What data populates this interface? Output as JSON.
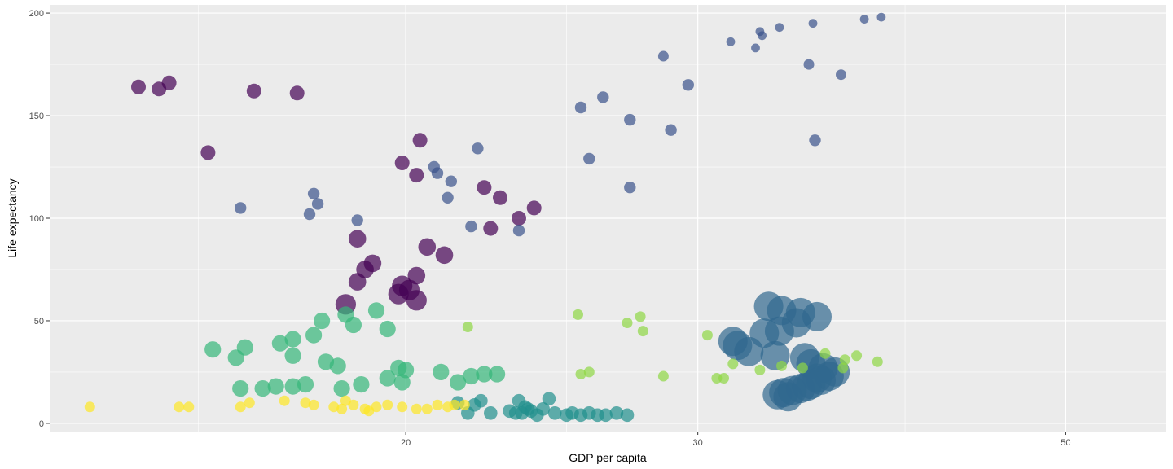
{
  "chart_data": {
    "type": "scatter",
    "title": "",
    "xlabel": "GDP per capita",
    "ylabel": "Life expectancy",
    "xscale": "log",
    "xlim": [
      12.2,
      57.5
    ],
    "ylim": [
      -4,
      204
    ],
    "x_ticks": [
      20,
      30,
      50
    ],
    "x_tick_labels": [
      "20",
      "30",
      "50"
    ],
    "x_minor_ticks": [
      15,
      25,
      40
    ],
    "y_ticks": [
      0,
      50,
      100,
      150,
      200
    ],
    "y_tick_labels": [
      "0",
      "50",
      "100",
      "150",
      "200"
    ],
    "y_minor_ticks": [
      25,
      75,
      125,
      175
    ],
    "grid": true,
    "legend": "none",
    "colors": {
      "panel_background": "#ebebeb",
      "grid": "#ffffff",
      "text": "#4d4d4d"
    },
    "opacity": 0.7,
    "series": [
      {
        "color": "#440154",
        "values": [
          [
            13.8,
            164,
            2.5
          ],
          [
            14.2,
            163,
            2.5
          ],
          [
            14.4,
            166,
            2.5
          ],
          [
            16.2,
            162,
            2.5
          ],
          [
            17.2,
            161,
            2.5
          ],
          [
            15.2,
            132,
            2.5
          ],
          [
            19.9,
            127,
            2.5
          ],
          [
            20.3,
            121,
            2.5
          ],
          [
            20.4,
            138,
            2.5
          ],
          [
            22.3,
            115,
            2.5
          ],
          [
            22.8,
            110,
            2.5
          ],
          [
            23.9,
            105,
            2.5
          ],
          [
            23.4,
            100,
            2.5
          ],
          [
            22.5,
            95,
            2.5
          ],
          [
            18.7,
            90,
            3.0
          ],
          [
            20.6,
            86,
            3.0
          ],
          [
            21.1,
            82,
            3.0
          ],
          [
            19.1,
            78,
            3.0
          ],
          [
            18.9,
            75,
            3.0
          ],
          [
            20.3,
            72,
            3.0
          ],
          [
            18.7,
            69,
            3.0
          ],
          [
            19.9,
            67,
            3.5
          ],
          [
            19.8,
            63,
            3.5
          ],
          [
            20.3,
            60,
            3.5
          ],
          [
            18.4,
            58,
            3.5
          ],
          [
            20.1,
            65,
            3.5
          ]
        ]
      },
      {
        "color": "#3b528b",
        "values": [
          [
            31.4,
            186,
            1.5
          ],
          [
            32.5,
            183,
            1.5
          ],
          [
            32.7,
            191,
            1.5
          ],
          [
            32.8,
            189,
            1.5
          ],
          [
            33.6,
            193,
            1.5
          ],
          [
            35.2,
            195,
            1.5
          ],
          [
            37.8,
            197,
            1.5
          ],
          [
            38.7,
            198,
            1.5
          ],
          [
            35.0,
            175,
            1.8
          ],
          [
            36.6,
            170,
            1.8
          ],
          [
            28.6,
            179,
            1.8
          ],
          [
            29.6,
            165,
            2.0
          ],
          [
            26.3,
            159,
            2.0
          ],
          [
            25.5,
            154,
            2.0
          ],
          [
            27.3,
            148,
            2.0
          ],
          [
            28.9,
            143,
            2.0
          ],
          [
            35.3,
            138,
            2.0
          ],
          [
            25.8,
            129,
            2.0
          ],
          [
            27.3,
            115,
            2.0
          ],
          [
            22.1,
            134,
            2.0
          ],
          [
            20.8,
            125,
            2.0
          ],
          [
            20.9,
            122,
            2.0
          ],
          [
            21.3,
            118,
            2.0
          ],
          [
            21.2,
            110,
            2.0
          ],
          [
            17.6,
            112,
            2.0
          ],
          [
            17.7,
            107,
            2.0
          ],
          [
            17.5,
            102,
            2.0
          ],
          [
            15.9,
            105,
            2.0
          ],
          [
            18.7,
            99,
            2.0
          ],
          [
            21.9,
            96,
            2.0
          ],
          [
            23.4,
            94,
            2.0
          ]
        ]
      },
      {
        "color": "#31688e",
        "values": [
          [
            33.1,
            57,
            5.0
          ],
          [
            33.7,
            55,
            5.0
          ],
          [
            34.6,
            54,
            5.0
          ],
          [
            35.4,
            52,
            5.0
          ],
          [
            34.4,
            49,
            5.0
          ],
          [
            32.9,
            44,
            5.0
          ],
          [
            33.6,
            45,
            5.0
          ],
          [
            31.5,
            40,
            5.0
          ],
          [
            31.7,
            38,
            5.0
          ],
          [
            32.2,
            35,
            5.0
          ],
          [
            33.4,
            33,
            5.0
          ],
          [
            34.8,
            32,
            5.0
          ],
          [
            35.1,
            29,
            5.0
          ],
          [
            35.7,
            27,
            5.0
          ],
          [
            36.3,
            25,
            5.0
          ],
          [
            36.0,
            23,
            5.0
          ],
          [
            35.6,
            21,
            5.0
          ],
          [
            35.1,
            19,
            5.0
          ],
          [
            34.6,
            17,
            5.0
          ],
          [
            34.2,
            16,
            5.0
          ],
          [
            33.8,
            15,
            5.0
          ],
          [
            33.5,
            14,
            5.0
          ],
          [
            34.0,
            13,
            5.0
          ],
          [
            35.4,
            22,
            5.0
          ],
          [
            34.9,
            18,
            5.0
          ]
        ]
      },
      {
        "color": "#21908d",
        "values": [
          [
            21.8,
            5,
            2.3
          ],
          [
            22.2,
            11,
            2.3
          ],
          [
            22.0,
            9,
            2.3
          ],
          [
            22.5,
            5,
            2.3
          ],
          [
            23.1,
            6,
            2.3
          ],
          [
            23.3,
            5,
            2.3
          ],
          [
            23.6,
            8,
            2.3
          ],
          [
            23.7,
            7,
            2.3
          ],
          [
            23.8,
            6,
            2.3
          ],
          [
            23.4,
            11,
            2.3
          ],
          [
            24.2,
            7,
            2.3
          ],
          [
            24.4,
            12,
            2.3
          ],
          [
            24.6,
            5,
            2.3
          ],
          [
            25.0,
            4,
            2.3
          ],
          [
            25.2,
            5,
            2.3
          ],
          [
            25.5,
            4,
            2.3
          ],
          [
            25.8,
            5,
            2.3
          ],
          [
            26.1,
            4,
            2.3
          ],
          [
            26.4,
            4,
            2.3
          ],
          [
            26.8,
            5,
            2.3
          ],
          [
            27.2,
            4,
            2.3
          ],
          [
            21.5,
            10,
            2.3
          ],
          [
            23.5,
            5,
            2.3
          ],
          [
            24.0,
            4,
            2.3
          ]
        ]
      },
      {
        "color": "#35b779",
        "values": [
          [
            15.3,
            36,
            2.8
          ],
          [
            16.0,
            37,
            2.8
          ],
          [
            15.8,
            32,
            2.8
          ],
          [
            16.8,
            39,
            2.8
          ],
          [
            17.1,
            41,
            2.8
          ],
          [
            17.1,
            33,
            2.8
          ],
          [
            17.6,
            43,
            2.8
          ],
          [
            17.8,
            50,
            2.8
          ],
          [
            18.4,
            53,
            2.8
          ],
          [
            18.6,
            48,
            2.8
          ],
          [
            19.2,
            55,
            2.8
          ],
          [
            19.5,
            46,
            2.8
          ],
          [
            17.9,
            30,
            2.8
          ],
          [
            18.2,
            28,
            2.8
          ],
          [
            19.8,
            27,
            2.8
          ],
          [
            20.0,
            26,
            2.8
          ],
          [
            21.0,
            25,
            2.8
          ],
          [
            22.3,
            24,
            2.8
          ],
          [
            22.7,
            24,
            2.8
          ],
          [
            21.9,
            23,
            2.8
          ],
          [
            21.5,
            20,
            2.8
          ],
          [
            19.5,
            22,
            2.8
          ],
          [
            19.9,
            20,
            2.8
          ],
          [
            18.8,
            19,
            2.8
          ],
          [
            18.3,
            17,
            2.8
          ],
          [
            17.4,
            19,
            2.8
          ],
          [
            17.1,
            18,
            2.8
          ],
          [
            16.7,
            18,
            2.8
          ],
          [
            16.4,
            17,
            2.8
          ],
          [
            15.9,
            17,
            2.8
          ]
        ]
      },
      {
        "color": "#8fd744",
        "values": [
          [
            25.4,
            53,
            1.8
          ],
          [
            27.2,
            49,
            1.8
          ],
          [
            27.7,
            52,
            1.8
          ],
          [
            27.8,
            45,
            1.8
          ],
          [
            21.8,
            47,
            1.8
          ],
          [
            30.4,
            43,
            1.8
          ],
          [
            31.5,
            29,
            1.8
          ],
          [
            35.8,
            34,
            1.8
          ],
          [
            36.8,
            31,
            1.8
          ],
          [
            37.4,
            33,
            1.8
          ],
          [
            38.5,
            30,
            1.8
          ],
          [
            32.7,
            26,
            1.8
          ],
          [
            33.7,
            28,
            1.8
          ],
          [
            34.7,
            27,
            1.8
          ],
          [
            36.7,
            27,
            1.8
          ],
          [
            25.5,
            24,
            1.8
          ],
          [
            25.8,
            25,
            1.8
          ],
          [
            28.6,
            23,
            1.8
          ],
          [
            30.8,
            22,
            1.8
          ],
          [
            31.1,
            22,
            1.8
          ]
        ]
      },
      {
        "color": "#fde725",
        "values": [
          [
            12.9,
            8,
            1.8
          ],
          [
            14.6,
            8,
            1.8
          ],
          [
            14.8,
            8,
            1.8
          ],
          [
            15.9,
            8,
            1.8
          ],
          [
            16.1,
            10,
            1.8
          ],
          [
            16.9,
            11,
            1.8
          ],
          [
            17.4,
            10,
            1.8
          ],
          [
            17.6,
            9,
            1.8
          ],
          [
            18.1,
            8,
            1.8
          ],
          [
            18.4,
            11,
            1.8
          ],
          [
            18.6,
            9,
            1.8
          ],
          [
            18.9,
            7,
            1.8
          ],
          [
            19.2,
            8,
            1.8
          ],
          [
            19.5,
            9,
            1.8
          ],
          [
            19.9,
            8,
            1.8
          ],
          [
            20.3,
            7,
            1.8
          ],
          [
            20.6,
            7,
            1.8
          ],
          [
            20.9,
            9,
            1.8
          ],
          [
            21.2,
            8,
            1.8
          ],
          [
            21.4,
            9,
            1.8
          ],
          [
            21.7,
            9,
            1.8
          ],
          [
            18.3,
            7,
            1.8
          ],
          [
            19.0,
            6,
            1.8
          ]
        ]
      }
    ]
  }
}
